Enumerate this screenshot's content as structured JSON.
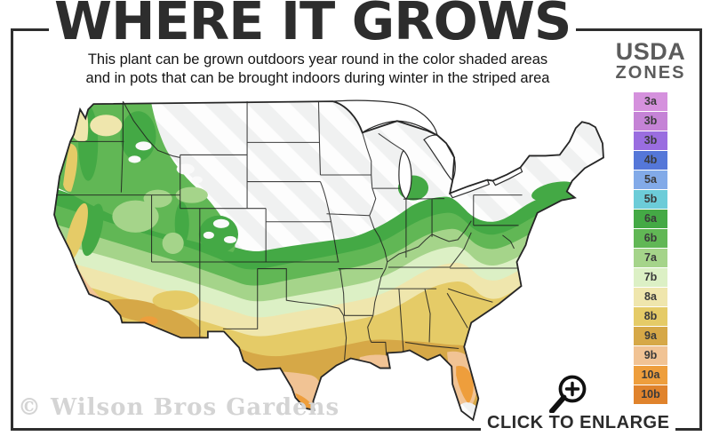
{
  "title": "WHERE IT GROWS",
  "subtitle_line1": "This plant can be grown outdoors year round in the color shaded areas",
  "subtitle_line2": "and in pots that can be brought indoors during winter in the striped area",
  "legend": {
    "title_line1": "USDA",
    "title_line2": "ZONES",
    "zones": [
      {
        "label": "3a",
        "color": "#d591dd"
      },
      {
        "label": "3b",
        "color": "#c583d6"
      },
      {
        "label": "3b",
        "color": "#9a6de0"
      },
      {
        "label": "4b",
        "color": "#5577d8"
      },
      {
        "label": "5a",
        "color": "#82aae8"
      },
      {
        "label": "5b",
        "color": "#6cccd8"
      },
      {
        "label": "6a",
        "color": "#44a945"
      },
      {
        "label": "6b",
        "color": "#61b755"
      },
      {
        "label": "7a",
        "color": "#a5d48a"
      },
      {
        "label": "7b",
        "color": "#dcf0c5"
      },
      {
        "label": "8a",
        "color": "#efe6ad"
      },
      {
        "label": "8b",
        "color": "#e5cb67"
      },
      {
        "label": "9a",
        "color": "#d6a847"
      },
      {
        "label": "9b",
        "color": "#f1c394"
      },
      {
        "label": "10a",
        "color": "#ee9e3c"
      },
      {
        "label": "10b",
        "color": "#e0832c"
      }
    ]
  },
  "watermark": "© Wilson Bros Gardens",
  "enlarge": {
    "label": "CLICK TO ENLARGE",
    "icon": "magnifier-plus-icon"
  }
}
